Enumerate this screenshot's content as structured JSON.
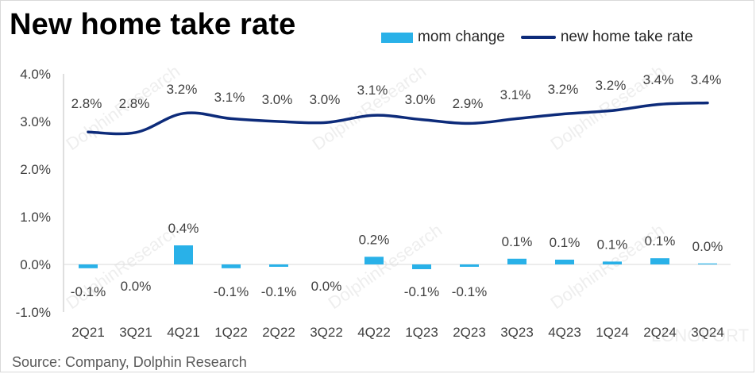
{
  "title": "New home take rate",
  "legend": {
    "bar_label": "mom change",
    "line_label": "new home take rate"
  },
  "source": "Source: Company, Dolphin Research",
  "watermark": [
    "DolphinResearch",
    "LONGPORT"
  ],
  "colors": {
    "bar": "#29b1e8",
    "line": "#0d2b7a"
  },
  "chart_data": {
    "type": "bar",
    "categories": [
      "2Q21",
      "3Q21",
      "4Q21",
      "1Q22",
      "2Q22",
      "3Q22",
      "4Q22",
      "1Q23",
      "2Q23",
      "3Q23",
      "4Q23",
      "1Q24",
      "2Q24",
      "3Q24"
    ],
    "series": [
      {
        "name": "mom change",
        "type": "bar",
        "values": [
          -0.1,
          0.0,
          0.4,
          -0.1,
          -0.1,
          0.0,
          0.2,
          -0.1,
          -0.1,
          0.1,
          0.1,
          0.1,
          0.1,
          0.0
        ],
        "labels": [
          "-0.1%",
          "0.0%",
          "0.4%",
          "-0.1%",
          "-0.1%",
          "0.0%",
          "0.2%",
          "-0.1%",
          "-0.1%",
          "0.1%",
          "0.1%",
          "0.1%",
          "0.1%",
          "0.0%"
        ],
        "actual_values": [
          -0.08,
          0.0,
          0.4,
          -0.08,
          -0.05,
          0.0,
          0.16,
          -0.1,
          -0.05,
          0.12,
          0.1,
          0.06,
          0.13,
          0.02
        ]
      },
      {
        "name": "new home take rate",
        "type": "line",
        "values": [
          2.8,
          2.8,
          3.2,
          3.1,
          3.0,
          3.0,
          3.1,
          3.0,
          2.9,
          3.1,
          3.2,
          3.2,
          3.4,
          3.4
        ],
        "labels": [
          "2.8%",
          "2.8%",
          "3.2%",
          "3.1%",
          "3.0%",
          "3.0%",
          "3.1%",
          "3.0%",
          "2.9%",
          "3.1%",
          "3.2%",
          "3.2%",
          "3.4%",
          "3.4%"
        ],
        "actual_values": [
          2.78,
          2.77,
          3.17,
          3.06,
          3.0,
          2.98,
          3.13,
          3.04,
          2.96,
          3.06,
          3.16,
          3.23,
          3.36,
          3.39
        ]
      }
    ],
    "y_ticks": [
      "4.0%",
      "3.0%",
      "2.0%",
      "1.0%",
      "0.0%",
      "-1.0%"
    ],
    "ylim": [
      -1.0,
      4.0
    ],
    "legend_position": "top-right",
    "grid": false
  }
}
